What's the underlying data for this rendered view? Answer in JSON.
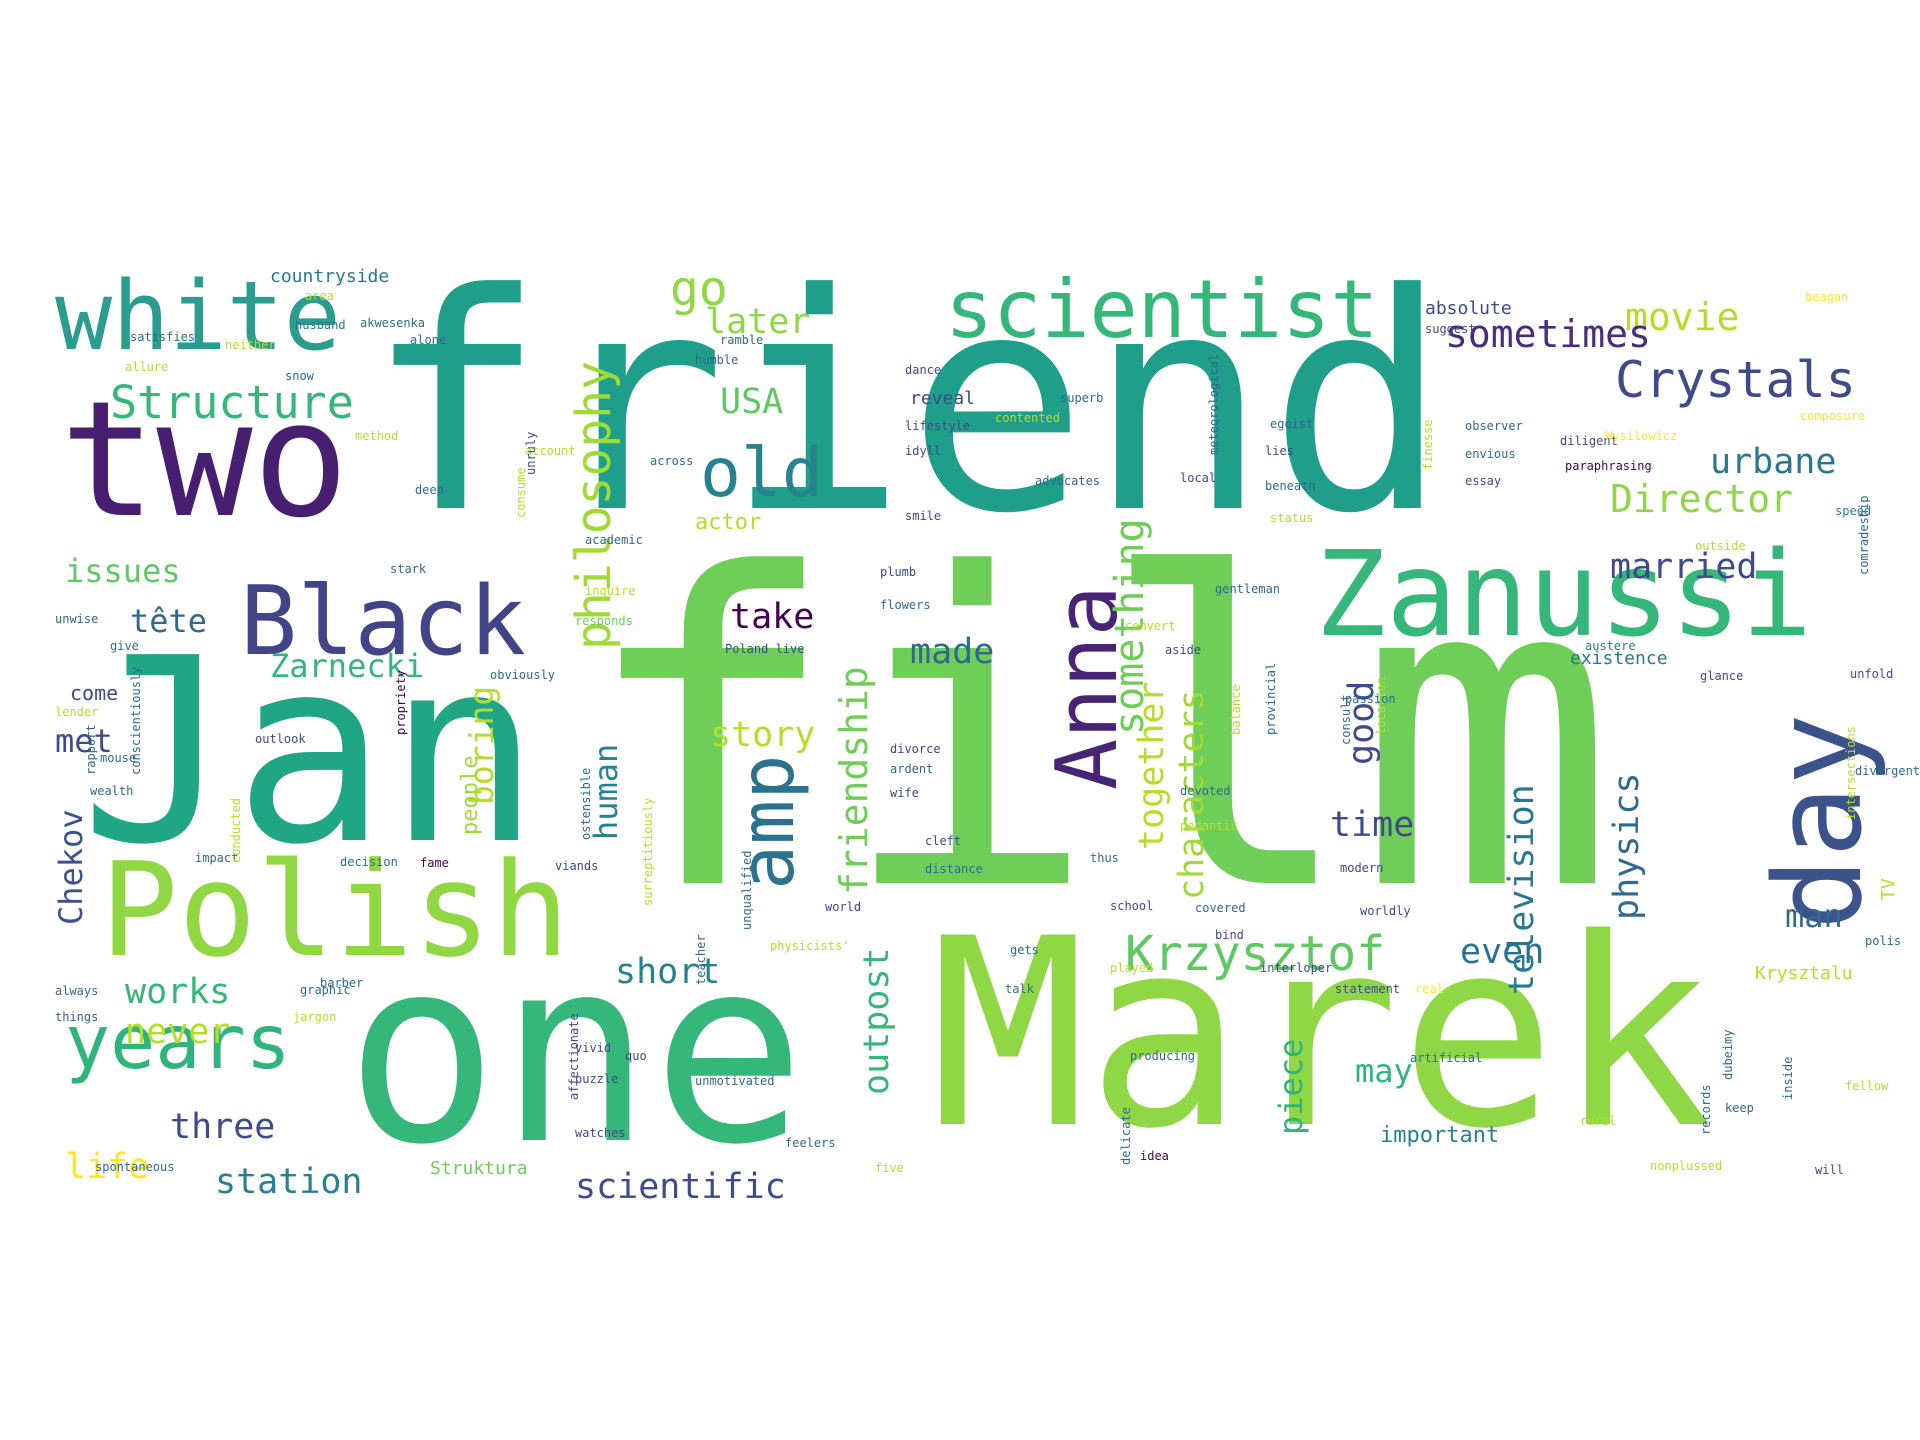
{
  "word_cloud": {
    "palette": [
      "#440154",
      "#482878",
      "#3e4a89",
      "#31688e",
      "#26828e",
      "#1f9e89",
      "#35b779",
      "#6ece58",
      "#b5de2b",
      "#fde725"
    ],
    "words": [
      {
        "text": "friend",
        "color": "#1f9e89"
      },
      {
        "text": "film",
        "color": "#6ece58"
      },
      {
        "text": "Marek",
        "color": "#8fd744"
      },
      {
        "text": "one",
        "color": "#35b779"
      },
      {
        "text": "Jan",
        "color": "#21a685"
      },
      {
        "text": "two",
        "color": "#481f70"
      },
      {
        "text": "Polish",
        "color": "#90d743"
      },
      {
        "text": "Zanussi",
        "color": "#35b779"
      },
      {
        "text": "scientist",
        "color": "#35b779"
      },
      {
        "text": "white",
        "color": "#2a9d8f"
      },
      {
        "text": "Black",
        "color": "#414487"
      },
      {
        "text": "day",
        "color": "#3b528b"
      },
      {
        "text": "years",
        "color": "#2fb47c"
      },
      {
        "text": "Anna",
        "color": "#482475"
      },
      {
        "text": "amp",
        "color": "#2c728e"
      },
      {
        "text": "old",
        "color": "#26828e"
      },
      {
        "text": "Crystals",
        "color": "#3e4a89"
      },
      {
        "text": "Structure",
        "color": "#35b779"
      },
      {
        "text": "Krzysztof",
        "color": "#5ec962"
      },
      {
        "text": "philosophy",
        "color": "#a0da39"
      },
      {
        "text": "movie",
        "color": "#b5de2b"
      },
      {
        "text": "sometimes",
        "color": "#472d7b"
      },
      {
        "text": "friendship",
        "color": "#6ece58"
      },
      {
        "text": "something",
        "color": "#6ece58"
      },
      {
        "text": "scientific",
        "color": "#3e4a89"
      },
      {
        "text": "station",
        "color": "#26828e"
      },
      {
        "text": "television",
        "color": "#2a788e"
      },
      {
        "text": "characters",
        "color": "#a0da39"
      },
      {
        "text": "together",
        "color": "#b5de2b"
      },
      {
        "text": "Director",
        "color": "#8fd744"
      },
      {
        "text": "married",
        "color": "#3e4a89"
      },
      {
        "text": "urbane",
        "color": "#2a788e"
      },
      {
        "text": "physics",
        "color": "#31688e"
      },
      {
        "text": "outpost",
        "color": "#35b779"
      },
      {
        "text": "short",
        "color": "#26828e"
      },
      {
        "text": "three",
        "color": "#3e4a89"
      },
      {
        "text": "works",
        "color": "#35b779"
      },
      {
        "text": "never",
        "color": "#b5de2b"
      },
      {
        "text": "life",
        "color": "#fde725"
      },
      {
        "text": "Zarnecki",
        "color": "#35b779"
      },
      {
        "text": "issues",
        "color": "#5ec962"
      },
      {
        "text": "tête",
        "color": "#31688e"
      },
      {
        "text": "met",
        "color": "#3e4a89"
      },
      {
        "text": "Chekov",
        "color": "#3b528b"
      },
      {
        "text": "story",
        "color": "#b5de2b"
      },
      {
        "text": "human",
        "color": "#26828e"
      },
      {
        "text": "take",
        "color": "#440154"
      },
      {
        "text": "made",
        "color": "#31688e"
      },
      {
        "text": "boring",
        "color": "#b5de2b"
      },
      {
        "text": "USA",
        "color": "#5ec962"
      },
      {
        "text": "go",
        "color": "#90d743"
      },
      {
        "text": "later",
        "color": "#8fd744"
      },
      {
        "text": "good",
        "color": "#3e4a89"
      },
      {
        "text": "time",
        "color": "#3e4a89"
      },
      {
        "text": "even",
        "color": "#2c728e"
      },
      {
        "text": "man",
        "color": "#31688e"
      },
      {
        "text": "may",
        "color": "#2fb47c"
      },
      {
        "text": "piece",
        "color": "#2fb47c"
      },
      {
        "text": "important",
        "color": "#26828e"
      },
      {
        "text": "people",
        "color": "#a0da39"
      },
      {
        "text": "actor",
        "color": "#b5de2b"
      },
      {
        "text": "come",
        "color": "#3e4a89"
      },
      {
        "text": "Struktura",
        "color": "#6ece58"
      },
      {
        "text": "existence",
        "color": "#2a788e"
      },
      {
        "text": "absolute",
        "color": "#3e4a89"
      },
      {
        "text": "reveal",
        "color": "#3e4a89"
      },
      {
        "text": "countryside",
        "color": "#2a788e"
      },
      {
        "text": "Krysztalu",
        "color": "#b5de2b"
      },
      {
        "text": "TV",
        "color": "#b5de2b"
      },
      {
        "text": "suggest",
        "color": "#3e4a89"
      },
      {
        "text": "husband",
        "color": "#2a788e"
      },
      {
        "text": "humble",
        "color": "#31688e"
      },
      {
        "text": "ramble",
        "color": "#31688e"
      },
      {
        "text": "dance",
        "color": "#3e4a89"
      },
      {
        "text": "lifestyle",
        "color": "#3e4a89"
      },
      {
        "text": "idyll",
        "color": "#3e4a89"
      },
      {
        "text": "smile",
        "color": "#3e4a89"
      },
      {
        "text": "superb",
        "color": "#31688e"
      },
      {
        "text": "advocates",
        "color": "#31688e"
      },
      {
        "text": "local",
        "color": "#3e4a89"
      },
      {
        "text": "beneath",
        "color": "#31688e"
      },
      {
        "text": "status",
        "color": "#b5de2b"
      },
      {
        "text": "essay",
        "color": "#3e4a89"
      },
      {
        "text": "observer",
        "color": "#31688e"
      },
      {
        "text": "envious",
        "color": "#31688e"
      },
      {
        "text": "diligent",
        "color": "#3e4a89"
      },
      {
        "text": "paraphrasing",
        "color": "#440154"
      },
      {
        "text": "Wysilowicz",
        "color": "#fde725"
      },
      {
        "text": "speed",
        "color": "#26828e"
      },
      {
        "text": "beagan",
        "color": "#fde725"
      },
      {
        "text": "composure",
        "color": "#fde725"
      },
      {
        "text": "egoist",
        "color": "#31688e"
      },
      {
        "text": "lies",
        "color": "#3e4a89"
      },
      {
        "text": "outside",
        "color": "#b5de2b"
      },
      {
        "text": "austere",
        "color": "#2a788e"
      },
      {
        "text": "glance",
        "color": "#3e4a89"
      },
      {
        "text": "unfold",
        "color": "#3e4a89"
      },
      {
        "text": "flowers",
        "color": "#31688e"
      },
      {
        "text": "plumb",
        "color": "#3e4a89"
      },
      {
        "text": "academic",
        "color": "#31688e"
      },
      {
        "text": "inquire",
        "color": "#b5de2b"
      },
      {
        "text": "responds",
        "color": "#6ece58"
      },
      {
        "text": "stark",
        "color": "#31688e"
      },
      {
        "text": "Poland live",
        "color": "#3e4a89"
      },
      {
        "text": "aside",
        "color": "#3e4a89"
      },
      {
        "text": "convert",
        "color": "#b5de2b"
      },
      {
        "text": "gentleman",
        "color": "#31688e"
      },
      {
        "text": "obviously",
        "color": "#31688e"
      },
      {
        "text": "outlook",
        "color": "#3e4a89"
      },
      {
        "text": "divorce",
        "color": "#3e4a89"
      },
      {
        "text": "ardent",
        "color": "#31688e"
      },
      {
        "text": "wife",
        "color": "#3e4a89"
      },
      {
        "text": "cleft",
        "color": "#3e4a89"
      },
      {
        "text": "distance",
        "color": "#31688e"
      },
      {
        "text": "devoted",
        "color": "#31688e"
      },
      {
        "text": "pedantic",
        "color": "#b5de2b"
      },
      {
        "text": "thus",
        "color": "#31688e"
      },
      {
        "text": "school",
        "color": "#3e4a89"
      },
      {
        "text": "covered",
        "color": "#31688e"
      },
      {
        "text": "bind",
        "color": "#3e4a89"
      },
      {
        "text": "modern",
        "color": "#3e4a89"
      },
      {
        "text": "worldly",
        "color": "#3e4a89"
      },
      {
        "text": "world",
        "color": "#3e4a89"
      },
      {
        "text": "physicists'",
        "color": "#b5de2b"
      },
      {
        "text": "viands",
        "color": "#3e4a89"
      },
      {
        "text": "fame",
        "color": "#440154"
      },
      {
        "text": "decision",
        "color": "#31688e"
      },
      {
        "text": "impact",
        "color": "#31688e"
      },
      {
        "text": "wealth",
        "color": "#31688e"
      },
      {
        "text": "mouse",
        "color": "#31688e"
      },
      {
        "text": "lender",
        "color": "#b5de2b"
      },
      {
        "text": "give",
        "color": "#31688e"
      },
      {
        "text": "unwise",
        "color": "#31688e"
      },
      {
        "text": "satisfies",
        "color": "#31688e"
      },
      {
        "text": "allure",
        "color": "#b5de2b"
      },
      {
        "text": "neither",
        "color": "#b5de2b"
      },
      {
        "text": "snow",
        "color": "#31688e"
      },
      {
        "text": "alone",
        "color": "#31688e"
      },
      {
        "text": "deep",
        "color": "#31688e"
      },
      {
        "text": "method",
        "color": "#b5de2b"
      },
      {
        "text": "account",
        "color": "#b5de2b"
      },
      {
        "text": "contented",
        "color": "#b5de2b"
      },
      {
        "text": "area",
        "color": "#b5de2b"
      },
      {
        "text": "akwesenka",
        "color": "#31688e"
      },
      {
        "text": "across",
        "color": "#31688e"
      },
      {
        "text": "barber",
        "color": "#31688e"
      },
      {
        "text": "always",
        "color": "#31688e"
      },
      {
        "text": "graphic",
        "color": "#31688e"
      },
      {
        "text": "things",
        "color": "#31688e"
      },
      {
        "text": "jargon",
        "color": "#b5de2b"
      },
      {
        "text": "spontaneous",
        "color": "#31688e"
      },
      {
        "text": "teacher",
        "color": "#31688e"
      },
      {
        "text": "vivid",
        "color": "#3e4a89"
      },
      {
        "text": "puzzle",
        "color": "#3e4a89"
      },
      {
        "text": "watches",
        "color": "#3e4a89"
      },
      {
        "text": "producing",
        "color": "#31688e"
      },
      {
        "text": "artificial",
        "color": "#31688e"
      },
      {
        "text": "fellow",
        "color": "#b5de2b"
      },
      {
        "text": "unmotivated",
        "color": "#31688e"
      },
      {
        "text": "feelers",
        "color": "#31688e"
      },
      {
        "text": "idea",
        "color": "#440154"
      },
      {
        "text": "rural",
        "color": "#b5de2b"
      },
      {
        "text": "nonplussed",
        "color": "#b5de2b"
      },
      {
        "text": "will",
        "color": "#3e4a89"
      },
      {
        "text": "keep",
        "color": "#31688e"
      },
      {
        "text": "gets",
        "color": "#31688e"
      },
      {
        "text": "talk",
        "color": "#31688e"
      },
      {
        "text": "played",
        "color": "#b5de2b"
      },
      {
        "text": "interloper",
        "color": "#3e4a89"
      },
      {
        "text": "statement",
        "color": "#3e4a89"
      },
      {
        "text": "real",
        "color": "#fde725"
      },
      {
        "text": "polis",
        "color": "#31688e"
      },
      {
        "text": "quo",
        "color": "#3e4a89"
      },
      {
        "text": "five",
        "color": "#b5de2b"
      },
      {
        "text": "divergent",
        "color": "#31688e"
      },
      {
        "text": "records",
        "color": "#31688e"
      },
      {
        "text": "dubeimy",
        "color": "#31688e"
      },
      {
        "text": "inside",
        "color": "#31688e"
      },
      {
        "text": "intersections",
        "color": "#b5de2b"
      },
      {
        "text": "comradeship",
        "color": "#31688e"
      },
      {
        "text": "consult",
        "color": "#31688e"
      },
      {
        "text": "location",
        "color": "#b5de2b"
      },
      {
        "text": "passion",
        "color": "#31688e"
      },
      {
        "text": "rapport",
        "color": "#31688e"
      },
      {
        "text": "conscientiously",
        "color": "#31688e"
      },
      {
        "text": "conducted",
        "color": "#b5de2b"
      },
      {
        "text": "propriety",
        "color": "#440154"
      },
      {
        "text": "ostensible",
        "color": "#31688e"
      },
      {
        "text": "surreptitiously",
        "color": "#b5de2b"
      },
      {
        "text": "unqualified",
        "color": "#31688e"
      },
      {
        "text": "affectionate",
        "color": "#3e4a89"
      },
      {
        "text": "delicate",
        "color": "#31688e"
      },
      {
        "text": "balance",
        "color": "#b5de2b"
      },
      {
        "text": "provincial",
        "color": "#31688e"
      },
      {
        "text": "meteorological",
        "color": "#31688e"
      },
      {
        "text": "finesse",
        "color": "#b5de2b"
      },
      {
        "text": "consume",
        "color": "#b5de2b"
      },
      {
        "text": "unruly",
        "color": "#3e4a89"
      }
    ]
  }
}
